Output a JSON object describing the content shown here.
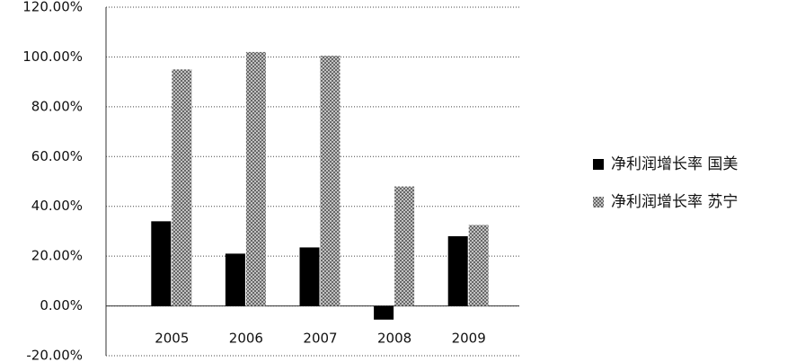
{
  "chart_data": {
    "type": "bar",
    "categories": [
      "2005",
      "2006",
      "2007",
      "2008",
      "2009"
    ],
    "series": [
      {
        "name": "净利润增长率 国美",
        "color": "#000000",
        "values": [
          34,
          21,
          23.5,
          -5.5,
          28
        ]
      },
      {
        "name": "净利润增长率 苏宁",
        "color": "#999999",
        "values": [
          95,
          102,
          100.5,
          48,
          32.5
        ]
      }
    ],
    "ylim": [
      -20,
      120
    ],
    "yticks": [
      {
        "value": -20,
        "label": "-20.00%"
      },
      {
        "value": 0,
        "label": "0.00%"
      },
      {
        "value": 20,
        "label": "20.00%"
      },
      {
        "value": 40,
        "label": "40.00%"
      },
      {
        "value": 60,
        "label": "60.00%"
      },
      {
        "value": 80,
        "label": "80.00%"
      },
      {
        "value": 100,
        "label": "100.00%"
      },
      {
        "value": 120,
        "label": "120.00%"
      }
    ],
    "grid": true,
    "legend": "right"
  }
}
